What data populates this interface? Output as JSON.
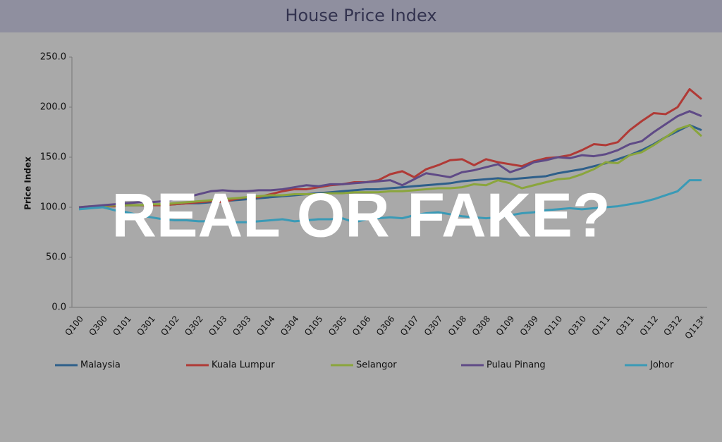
{
  "chart_data": {
    "type": "line",
    "title": "House Price Index",
    "ylabel": "Price Index",
    "annotation": "REAL OR FAKE?",
    "categories": [
      "Q100",
      null,
      "Q300",
      null,
      "Q101",
      null,
      "Q301",
      null,
      "Q102",
      null,
      "Q302",
      null,
      "Q103",
      null,
      "Q303",
      null,
      "Q104",
      null,
      "Q304",
      null,
      "Q105",
      null,
      "Q305",
      null,
      "Q106",
      null,
      "Q306",
      null,
      "Q107",
      null,
      "Q307",
      null,
      "Q108",
      null,
      "Q308",
      null,
      "Q109",
      null,
      "Q309",
      null,
      "Q110",
      null,
      "Q310",
      null,
      "Q111",
      null,
      "Q311",
      null,
      "Q112",
      null,
      "Q312",
      null,
      "Q113*"
    ],
    "ylim": [
      0,
      250
    ],
    "yticks": [
      {
        "value": 0,
        "label": "0.0"
      },
      {
        "value": 50,
        "label": "50.0"
      },
      {
        "value": 100,
        "label": "100.0"
      },
      {
        "value": 150,
        "label": "150.0"
      },
      {
        "value": 200,
        "label": "200.0"
      },
      {
        "value": 250,
        "label": "250.0"
      }
    ],
    "grid": false,
    "legend": "bottom",
    "series": [
      {
        "name": "Malaysia",
        "color": "#2e5f8a",
        "values": [
          100,
          100,
          101,
          101,
          102,
          102,
          102,
          103,
          103,
          104,
          104,
          105,
          106,
          107,
          108,
          109,
          110,
          111,
          112,
          113,
          114,
          115,
          116,
          117,
          118,
          118,
          119,
          120,
          121,
          122,
          123,
          124,
          126,
          127,
          128,
          129,
          128,
          129,
          130,
          131,
          134,
          136,
          138,
          141,
          144,
          148,
          152,
          157,
          163,
          170,
          176,
          182,
          177
        ]
      },
      {
        "name": "Kuala Lumpur",
        "color": "#b03a36",
        "values": [
          100,
          100,
          101,
          101,
          102,
          102,
          102,
          102,
          103,
          104,
          105,
          106,
          105,
          108,
          110,
          110,
          113,
          116,
          118,
          118,
          120,
          122,
          123,
          125,
          125,
          127,
          133,
          136,
          130,
          138,
          142,
          147,
          148,
          142,
          148,
          145,
          143,
          141,
          146,
          149,
          150,
          152,
          157,
          163,
          162,
          165,
          177,
          186,
          194,
          193,
          200,
          218,
          208
        ]
      },
      {
        "name": "Selangor",
        "color": "#8aa53c",
        "values": [
          100,
          101,
          101,
          102,
          102,
          102,
          103,
          103,
          104,
          105,
          106,
          107,
          108,
          109,
          110,
          111,
          112,
          112,
          113,
          113,
          113,
          114,
          114,
          115,
          115,
          115,
          116,
          116,
          117,
          118,
          119,
          119,
          120,
          123,
          122,
          127,
          124,
          119,
          122,
          125,
          128,
          129,
          133,
          138,
          145,
          144,
          152,
          155,
          162,
          170,
          178,
          182,
          171
        ]
      },
      {
        "name": "Pulau Pinang",
        "color": "#5f4a86",
        "values": [
          100,
          101,
          102,
          103,
          104,
          105,
          105,
          106,
          108,
          110,
          113,
          116,
          117,
          116,
          116,
          117,
          117,
          118,
          120,
          122,
          121,
          123,
          123,
          124,
          125,
          126,
          127,
          122,
          128,
          134,
          132,
          130,
          135,
          137,
          140,
          143,
          135,
          139,
          145,
          147,
          150,
          149,
          152,
          151,
          153,
          157,
          163,
          166,
          175,
          183,
          191,
          196,
          191
        ]
      },
      {
        "name": "Johor",
        "color": "#3a9ab6",
        "values": [
          98,
          99,
          100,
          97,
          95,
          92,
          90,
          88,
          87,
          87,
          86,
          86,
          86,
          85,
          85,
          86,
          87,
          88,
          86,
          87,
          88,
          88,
          89,
          85,
          88,
          89,
          90,
          89,
          92,
          94,
          95,
          93,
          91,
          90,
          89,
          90,
          92,
          94,
          95,
          97,
          98,
          99,
          98,
          99,
          100,
          101,
          103,
          105,
          108,
          112,
          116,
          127,
          127
        ]
      }
    ]
  }
}
